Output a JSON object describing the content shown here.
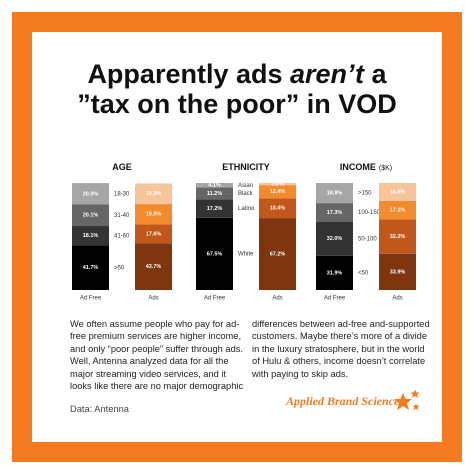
{
  "header": {
    "title_line1_a": "Apparently ads ",
    "title_line1_b": "aren’t",
    "title_line1_c": " a",
    "title_line2": "”tax on the poor” in VOD"
  },
  "chart_data": [
    {
      "type": "stacked-bar",
      "title": "AGE",
      "categories": [
        "Ad Free",
        "Ads"
      ],
      "ylim": [
        0,
        100
      ],
      "series": [
        {
          "name": ">50",
          "colors": [
            "#000000",
            "#7e3510"
          ],
          "values": [
            41.7,
            43.7
          ],
          "value_labels": [
            "41.7%",
            "43.7%"
          ]
        },
        {
          "name": "41-60",
          "colors": [
            "#333333",
            "#c2571b"
          ],
          "values": [
            18.1,
            17.6
          ],
          "value_labels": [
            "18.1%",
            "17.6%"
          ]
        },
        {
          "name": "31-40",
          "colors": [
            "#666666",
            "#f28a2e"
          ],
          "values": [
            20.1,
            19.0
          ],
          "value_labels": [
            "20.1%",
            "19.0%"
          ]
        },
        {
          "name": "18-30",
          "colors": [
            "#a6a6a6",
            "#f8c49a"
          ],
          "values": [
            20.0,
            19.3
          ],
          "value_labels": [
            "20.0%",
            "19.3%"
          ]
        }
      ]
    },
    {
      "type": "stacked-bar",
      "title": "ETHNICITY",
      "categories": [
        "Ad Free",
        "Ads"
      ],
      "ylim": [
        0,
        100
      ],
      "series": [
        {
          "name": "White",
          "colors": [
            "#000000",
            "#7e3510"
          ],
          "values": [
            67.5,
            67.2
          ],
          "value_labels": [
            "67.5%",
            "67.2%"
          ]
        },
        {
          "name": "Latino",
          "colors": [
            "#333333",
            "#c2571b"
          ],
          "values": [
            17.2,
            18.4
          ],
          "value_labels": [
            "17.2%",
            "18.4%"
          ]
        },
        {
          "name": "Black",
          "colors": [
            "#666666",
            "#f28a2e"
          ],
          "values": [
            11.2,
            12.4
          ],
          "value_labels": [
            "11.2%",
            "12.4%"
          ]
        },
        {
          "name": "Asian",
          "colors": [
            "#a6a6a6",
            "#f8c49a"
          ],
          "values": [
            4.1,
            2.0
          ],
          "value_labels": [
            "4.1%",
            "2.0%"
          ]
        }
      ]
    },
    {
      "type": "stacked-bar",
      "title": "INCOME",
      "subtitle": "($K)",
      "categories": [
        "Ad Free",
        "Ads"
      ],
      "ylim": [
        0,
        100
      ],
      "series": [
        {
          "name": "<50",
          "colors": [
            "#000000",
            "#7e3510"
          ],
          "values": [
            31.9,
            33.9
          ],
          "value_labels": [
            "31.9%",
            "33.9%"
          ]
        },
        {
          "name": "50-100",
          "colors": [
            "#333333",
            "#c2571b"
          ],
          "values": [
            32.0,
            32.2
          ],
          "value_labels": [
            "32.0%",
            "32.2%"
          ]
        },
        {
          "name": "100-150",
          "colors": [
            "#666666",
            "#f28a2e"
          ],
          "values": [
            17.3,
            17.1
          ],
          "value_labels": [
            "17.3%",
            "17.1%"
          ]
        },
        {
          "name": ">150",
          "colors": [
            "#a6a6a6",
            "#f8c49a"
          ],
          "values": [
            18.8,
            16.8
          ],
          "value_labels": [
            "18.8%",
            "16.8%"
          ]
        }
      ]
    }
  ],
  "body": {
    "left": "We often assume people who pay for ad-free premium services are higher income, and only “poor people” suffer through ads. Well, Antenna analyzed data for all the major streaming video services, and it looks like there are no major demographic",
    "right": "differences between ad-free and-supported customers. Maybe there’s more of a divide in the luxury stratosphere, but in the world of Hulu & others, income doesn’t correlate with paying to skip ads."
  },
  "source": "Data: Antenna",
  "brand": "Applied Brand Science"
}
